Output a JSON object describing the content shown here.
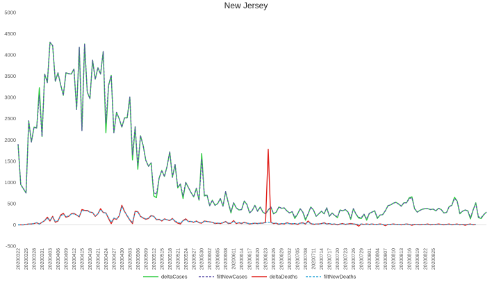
{
  "chart_data": {
    "type": "line",
    "title": "New Jersey",
    "xlabel": "",
    "ylabel": "",
    "ylim": [
      -500,
      5000
    ],
    "y_ticks": [
      -500,
      0,
      500,
      1000,
      1500,
      2000,
      2500,
      3000,
      3500,
      4000,
      4500,
      5000
    ],
    "grid": false,
    "legend_position": "bottom",
    "x_tick_labels": [
      "20200322",
      "20200325",
      "20200328",
      "20200331",
      "20200403",
      "20200406",
      "20200409",
      "20200412",
      "20200415",
      "20200418",
      "20200421",
      "20200424",
      "20200427",
      "20200430",
      "20200503",
      "20200506",
      "20200509",
      "20200512",
      "20200515",
      "20200518",
      "20200521",
      "20200524",
      "20200527",
      "20200530",
      "20200602",
      "20200605",
      "20200608",
      "20200611",
      "20200614",
      "20200617",
      "20200620",
      "20200623",
      "20200626",
      "20200629",
      "20200702",
      "20200705",
      "20200708",
      "20200711",
      "20200714",
      "20200717",
      "20200720",
      "20200723",
      "20200726",
      "20200729",
      "20200801",
      "20200804",
      "20200807",
      "20200810",
      "20200813",
      "20200816",
      "20200819",
      "20200822",
      "20200825"
    ],
    "x_start": "2020-03-22",
    "series": [
      {
        "name": "deltaCases",
        "color": "#2ecc40",
        "dash": "solid",
        "values": [
          1900,
          950,
          850,
          750,
          2450,
          1950,
          2300,
          2280,
          3230,
          2080,
          3550,
          3350,
          4300,
          4220,
          3380,
          3580,
          3300,
          3050,
          3580,
          3560,
          3550,
          3670,
          2720,
          4180,
          2220,
          4260,
          3130,
          2970,
          3880,
          3430,
          3700,
          3550,
          4080,
          2170,
          3280,
          3520,
          2170,
          2650,
          2500,
          2300,
          2520,
          2520,
          3010,
          1530,
          2310,
          1310,
          2100,
          1870,
          1520,
          1380,
          1460,
          680,
          640,
          1100,
          1280,
          1140,
          1380,
          1720,
          1120,
          1420,
          870,
          960,
          620,
          1000,
          880,
          760,
          660,
          860,
          580,
          1680,
          680,
          700,
          450,
          580,
          460,
          500,
          620,
          440,
          780,
          520,
          280,
          520,
          400,
          350,
          360,
          560,
          480,
          280,
          340,
          460,
          320,
          420,
          300,
          260,
          350,
          420,
          260,
          300,
          420,
          390,
          400,
          330,
          280,
          310,
          150,
          250,
          380,
          300,
          110,
          260,
          420,
          350,
          200,
          260,
          320,
          260,
          400,
          200,
          280,
          220,
          170,
          350,
          330,
          360,
          300,
          130,
          380,
          250,
          160,
          150,
          250,
          110,
          270,
          300,
          330,
          150,
          230,
          240,
          330,
          450,
          470,
          510,
          530,
          490,
          440,
          520,
          520,
          640,
          660,
          380,
          300,
          340,
          370,
          380,
          380,
          360,
          370,
          330,
          390,
          360,
          280,
          290,
          430,
          460,
          650,
          560,
          260,
          320,
          350,
          330,
          140,
          350,
          520,
          170,
          150,
          240,
          300
        ]
      },
      {
        "name": "filtNewCases",
        "color": "#5a4fa8",
        "dash": "dashed",
        "values": [
          1900,
          950,
          850,
          750,
          2450,
          1950,
          2300,
          2280,
          3050,
          2080,
          3550,
          3350,
          4300,
          4220,
          3380,
          3580,
          3300,
          3050,
          3580,
          3560,
          3550,
          3670,
          2720,
          4180,
          2220,
          4260,
          3130,
          2970,
          3880,
          3430,
          3700,
          3550,
          4080,
          2400,
          3280,
          3520,
          2170,
          2650,
          2500,
          2300,
          2520,
          2520,
          3010,
          1650,
          2310,
          1400,
          2100,
          1870,
          1520,
          1380,
          1460,
          760,
          720,
          1100,
          1280,
          1140,
          1380,
          1720,
          1120,
          1420,
          900,
          960,
          680,
          1000,
          880,
          760,
          660,
          860,
          580,
          1550,
          700,
          700,
          450,
          580,
          460,
          500,
          620,
          440,
          780,
          520,
          310,
          520,
          400,
          350,
          360,
          560,
          480,
          280,
          340,
          460,
          320,
          420,
          300,
          260,
          350,
          420,
          260,
          300,
          420,
          390,
          400,
          330,
          280,
          310,
          180,
          250,
          380,
          300,
          150,
          260,
          420,
          350,
          200,
          260,
          320,
          260,
          400,
          200,
          280,
          220,
          190,
          350,
          330,
          360,
          300,
          160,
          380,
          250,
          180,
          170,
          250,
          140,
          270,
          300,
          330,
          170,
          230,
          240,
          330,
          450,
          470,
          510,
          530,
          490,
          440,
          520,
          520,
          620,
          640,
          380,
          300,
          340,
          370,
          380,
          380,
          360,
          370,
          330,
          390,
          360,
          280,
          290,
          430,
          460,
          620,
          560,
          280,
          320,
          350,
          330,
          170,
          350,
          500,
          190,
          170,
          240,
          300
        ]
      },
      {
        "name": "deltaDeaths",
        "color": "#e0201b",
        "dash": "solid",
        "values": [
          0,
          0,
          0,
          10,
          20,
          20,
          30,
          50,
          20,
          60,
          100,
          180,
          90,
          200,
          60,
          90,
          230,
          270,
          180,
          200,
          260,
          270,
          230,
          190,
          360,
          340,
          340,
          300,
          290,
          200,
          260,
          380,
          290,
          280,
          150,
          30,
          150,
          130,
          210,
          460,
          320,
          210,
          110,
          30,
          320,
          310,
          200,
          160,
          130,
          150,
          220,
          200,
          120,
          130,
          90,
          140,
          120,
          100,
          150,
          80,
          40,
          20,
          100,
          140,
          80,
          80,
          60,
          90,
          50,
          40,
          90,
          80,
          70,
          60,
          30,
          40,
          30,
          50,
          80,
          30,
          40,
          100,
          30,
          50,
          30,
          60,
          40,
          20,
          30,
          40,
          30,
          40,
          40,
          60,
          1780,
          60,
          30,
          40,
          10,
          30,
          20,
          50,
          30,
          20,
          30,
          10,
          40,
          50,
          20,
          90,
          30,
          10,
          20,
          20,
          30,
          50,
          20,
          30,
          10,
          20,
          0,
          20,
          30,
          10,
          20,
          30,
          20,
          10,
          -30,
          20,
          10,
          20,
          10,
          20,
          10,
          10,
          20,
          10,
          -20,
          10,
          10,
          20,
          10,
          10,
          0,
          10,
          20,
          10,
          -10,
          10,
          10,
          0,
          10,
          10,
          20,
          0,
          10,
          10,
          20,
          10,
          0,
          10,
          20,
          0,
          10,
          20,
          0,
          10,
          -10,
          10,
          20,
          0,
          10
        ]
      },
      {
        "name": "filtNewDeaths",
        "color": "#2aa6d8",
        "dash": "dashed",
        "values": [
          0,
          0,
          0,
          10,
          20,
          20,
          30,
          50,
          20,
          60,
          100,
          150,
          110,
          180,
          80,
          100,
          210,
          250,
          190,
          210,
          250,
          260,
          230,
          200,
          340,
          330,
          330,
          300,
          290,
          210,
          260,
          360,
          290,
          280,
          170,
          60,
          160,
          140,
          210,
          430,
          310,
          220,
          120,
          60,
          300,
          300,
          200,
          170,
          140,
          160,
          210,
          200,
          130,
          130,
          100,
          130,
          120,
          110,
          140,
          90,
          60,
          40,
          100,
          120,
          80,
          80,
          70,
          80,
          60,
          50,
          80,
          80,
          70,
          60,
          40,
          40,
          40,
          50,
          70,
          40,
          40,
          80,
          40,
          50,
          40,
          50,
          40,
          30,
          30,
          40,
          30,
          40,
          40,
          50,
          60,
          50,
          40,
          40,
          20,
          30,
          30,
          40,
          30,
          30,
          30,
          20,
          40,
          40,
          30,
          60,
          30,
          20,
          20,
          20,
          30,
          40,
          20,
          30,
          20,
          20,
          10,
          20,
          20,
          20,
          20,
          20,
          20,
          20,
          10,
          20,
          10,
          20,
          10,
          20,
          10,
          10,
          20,
          10,
          0,
          10,
          10,
          20,
          10,
          10,
          10,
          10,
          20,
          10,
          10,
          10,
          10,
          10,
          10,
          10,
          10,
          10,
          10,
          10,
          10,
          10,
          10,
          10,
          10,
          10,
          10,
          10,
          10,
          10,
          10,
          10,
          10,
          10,
          10
        ]
      }
    ]
  }
}
